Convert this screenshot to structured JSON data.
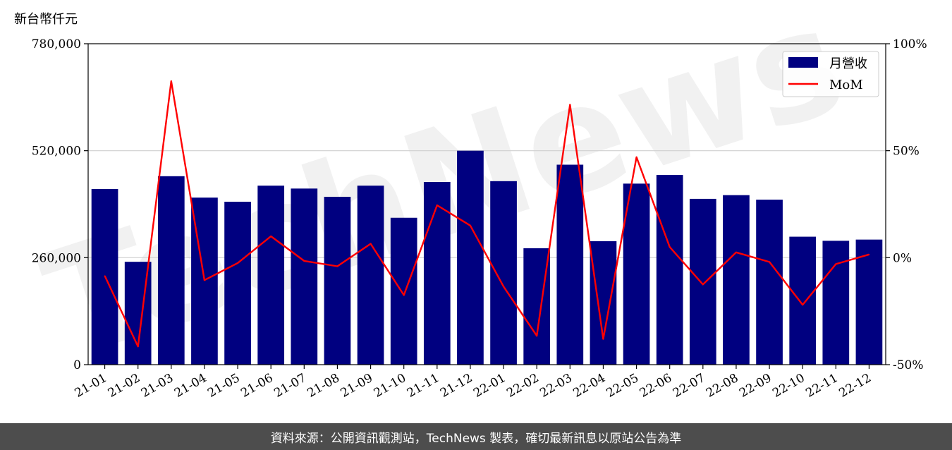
{
  "chart_data": {
    "type": "bar",
    "unit_label": "新台幣仟元",
    "categories": [
      "21-01",
      "21-02",
      "21-03",
      "21-04",
      "21-05",
      "21-06",
      "21-07",
      "21-08",
      "21-09",
      "21-10",
      "21-11",
      "21-12",
      "22-01",
      "22-02",
      "22-03",
      "22-04",
      "22-05",
      "22-06",
      "22-07",
      "22-08",
      "22-09",
      "22-10",
      "22-11",
      "22-12"
    ],
    "series": [
      {
        "name": "月營收",
        "type": "bar",
        "axis": "left",
        "color": "#000080",
        "values": [
          427000,
          250000,
          458000,
          406000,
          396000,
          435000,
          428000,
          408000,
          435000,
          357000,
          444000,
          520000,
          446000,
          283000,
          486000,
          300000,
          440000,
          461000,
          403000,
          412000,
          401000,
          311000,
          301000,
          304000
        ]
      },
      {
        "name": "MoM",
        "type": "line",
        "axis": "right",
        "color": "#ff0000",
        "values": [
          -8.5,
          -41.5,
          82.5,
          -10.5,
          -2.5,
          10,
          -1.5,
          -4,
          6.5,
          -17.5,
          24.5,
          15,
          -13.5,
          -36.5,
          71.5,
          -38,
          47,
          5,
          -12.5,
          2.5,
          -2,
          -22,
          -3,
          1.5
        ]
      }
    ],
    "left_axis": {
      "ylim": [
        0,
        780000
      ],
      "ticks": [
        0,
        260000,
        520000,
        780000
      ],
      "tick_labels": [
        "0",
        "260,000",
        "520,000",
        "780,000"
      ]
    },
    "right_axis": {
      "ylim": [
        -50,
        100
      ],
      "ticks": [
        -50,
        0,
        50,
        100
      ],
      "tick_labels": [
        "-50%",
        "0%",
        "50%",
        "100%"
      ]
    },
    "grid": "horizontal",
    "legend": "top-right"
  },
  "watermark": "TechNews",
  "footer": {
    "text": "資料來源：公開資訊觀測站，TechNews 製表，確切最新訊息以原站公告為準"
  }
}
